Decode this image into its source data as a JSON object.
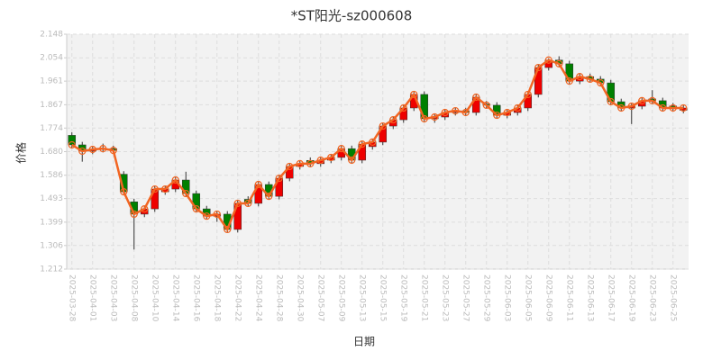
{
  "chart_data": {
    "type": "candlestick",
    "title": "*ST阳光-sz000608",
    "xlabel": "日期",
    "ylabel": "价格",
    "categories": [
      "2025-03-28",
      null,
      "2025-04-01",
      null,
      "2025-04-03",
      null,
      "2025-04-08",
      null,
      "2025-04-10",
      null,
      "2025-04-14",
      null,
      "2025-04-16",
      null,
      "2025-04-18",
      null,
      "2025-04-22",
      null,
      "2025-04-24",
      null,
      "2025-04-28",
      null,
      "2025-04-30",
      null,
      "2025-05-07",
      null,
      "2025-05-09",
      null,
      "2025-05-13",
      null,
      "2025-05-15",
      null,
      "2025-05-19",
      null,
      "2025-05-21",
      null,
      "2025-05-23",
      null,
      "2025-05-27",
      null,
      "2025-05-29",
      null,
      "2025-06-03",
      null,
      "2025-06-05",
      null,
      "2025-06-09",
      null,
      "2025-06-11",
      null,
      "2025-06-13",
      null,
      "2025-06-17",
      null,
      "2025-06-19",
      null,
      "2025-06-23",
      null,
      "2025-06-25",
      null
    ],
    "open": [
      1.745,
      1.707,
      1.682,
      1.689,
      1.692,
      1.59,
      1.48,
      1.431,
      1.452,
      1.52,
      1.531,
      1.567,
      1.513,
      1.452,
      1.423,
      1.431,
      1.37,
      1.49,
      1.474,
      1.549,
      1.502,
      1.574,
      1.621,
      1.645,
      1.632,
      1.646,
      1.657,
      1.692,
      1.646,
      1.7,
      1.718,
      1.782,
      1.807,
      1.854,
      1.908,
      1.811,
      1.818,
      1.836,
      1.843,
      1.836,
      1.87,
      1.865,
      1.825,
      1.836,
      1.854,
      1.908,
      2.015,
      2.045,
      2.03,
      1.961,
      1.979,
      1.969,
      1.954,
      1.879,
      1.854,
      1.861,
      1.89,
      1.883,
      1.862,
      1.845
    ],
    "high": [
      1.757,
      1.719,
      1.701,
      1.712,
      1.704,
      1.602,
      1.492,
      1.464,
      1.543,
      1.543,
      1.579,
      1.6,
      1.525,
      1.464,
      1.443,
      1.443,
      1.486,
      1.502,
      1.561,
      1.561,
      1.586,
      1.633,
      1.644,
      1.657,
      1.658,
      1.669,
      1.704,
      1.704,
      1.722,
      1.73,
      1.794,
      1.819,
      1.866,
      1.92,
      1.92,
      1.83,
      1.848,
      1.855,
      1.855,
      1.909,
      1.882,
      1.877,
      1.848,
      1.866,
      1.92,
      2.027,
      2.052,
      2.06,
      2.042,
      1.991,
      1.991,
      1.981,
      1.966,
      1.891,
      1.873,
      1.895,
      1.925,
      1.895,
      1.874,
      1.866
    ],
    "low": [
      1.695,
      1.64,
      1.67,
      1.677,
      1.673,
      1.508,
      1.29,
      1.419,
      1.44,
      1.508,
      1.519,
      1.501,
      1.44,
      1.411,
      1.4,
      1.358,
      1.358,
      1.462,
      1.462,
      1.49,
      1.49,
      1.562,
      1.609,
      1.62,
      1.62,
      1.634,
      1.645,
      1.634,
      1.634,
      1.688,
      1.706,
      1.77,
      1.795,
      1.842,
      1.799,
      1.795,
      1.806,
      1.824,
      1.824,
      1.824,
      1.853,
      1.813,
      1.813,
      1.824,
      1.842,
      1.896,
      2.003,
      2.018,
      1.949,
      1.949,
      1.957,
      1.942,
      1.867,
      1.842,
      1.79,
      1.849,
      1.871,
      1.842,
      1.842,
      1.833
    ],
    "close": [
      1.707,
      1.682,
      1.689,
      1.692,
      1.685,
      1.52,
      1.431,
      1.452,
      1.531,
      1.531,
      1.567,
      1.513,
      1.452,
      1.423,
      1.431,
      1.37,
      1.474,
      1.474,
      1.549,
      1.502,
      1.574,
      1.621,
      1.632,
      1.632,
      1.646,
      1.657,
      1.692,
      1.646,
      1.71,
      1.718,
      1.782,
      1.807,
      1.854,
      1.908,
      1.811,
      1.818,
      1.836,
      1.843,
      1.836,
      1.897,
      1.865,
      1.825,
      1.836,
      1.854,
      1.908,
      2.015,
      2.045,
      2.03,
      1.961,
      1.979,
      1.969,
      1.954,
      1.879,
      1.854,
      1.861,
      1.883,
      1.883,
      1.854,
      1.854,
      1.854
    ],
    "up_color": "#ee0000",
    "down_color": "#008000",
    "line_color": "#f26522",
    "ylim": [
      1.212,
      2.148
    ],
    "yticks": [
      1.212,
      1.306,
      1.399,
      1.493,
      1.586,
      {
        "value": 1.68,
        "label": "1.680"
      },
      1.774,
      1.867,
      1.961,
      2.054,
      2.148
    ],
    "grid": true
  }
}
